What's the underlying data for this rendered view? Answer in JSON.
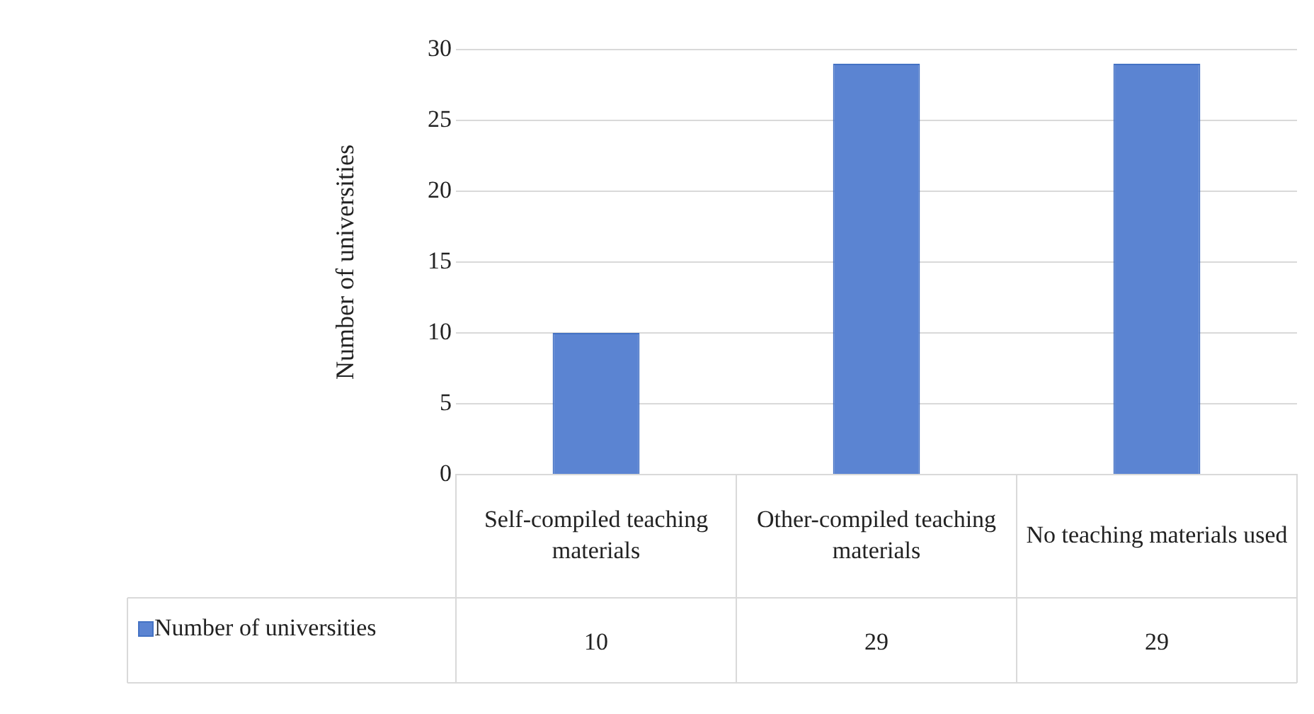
{
  "chart_data": {
    "type": "bar",
    "ylabel": "Number of universities",
    "categories": [
      "Self-compiled teaching materials",
      "Other-compiled teaching materials",
      "No teaching materials used"
    ],
    "series": [
      {
        "name": "Number of universities",
        "color": "#5b84d2",
        "values": [
          10,
          29,
          29
        ]
      }
    ],
    "ylim": [
      0,
      30
    ],
    "yticks": [
      0,
      5,
      10,
      15,
      20,
      25,
      30
    ],
    "grid": "y",
    "legend": "bottom",
    "data_labels": true
  }
}
